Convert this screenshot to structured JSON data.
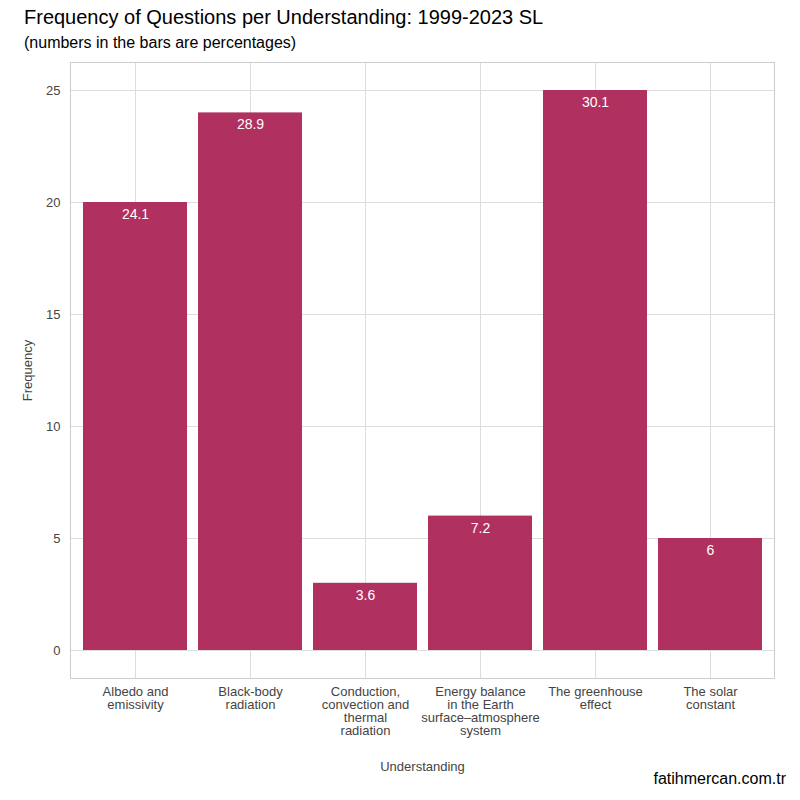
{
  "chart_data": {
    "type": "bar",
    "title": "Frequency of Questions per Understanding: 1999-2023 SL",
    "subtitle": "(numbers in the bars are percentages)",
    "caption": "fatihmercan.com.tr",
    "x_label": "Understanding",
    "y_label": "Frequency",
    "categories": [
      "Albedo and\nemissivity",
      "Black-body\nradiation",
      "Conduction,\nconvection and\nthermal\nradiation",
      "Energy balance\nin the Earth\nsurface–atmosphere\nsystem",
      "The greenhouse\neffect",
      "The solar\nconstant"
    ],
    "values": [
      20,
      24,
      3,
      6,
      25,
      5
    ],
    "percentages": [
      24.1,
      28.9,
      3.6,
      7.2,
      30.1,
      6
    ],
    "color": "#b03060",
    "ylim": [
      -1.25,
      26.25
    ],
    "yticks": [
      0,
      5,
      10,
      15,
      20,
      25
    ],
    "grid": true
  }
}
